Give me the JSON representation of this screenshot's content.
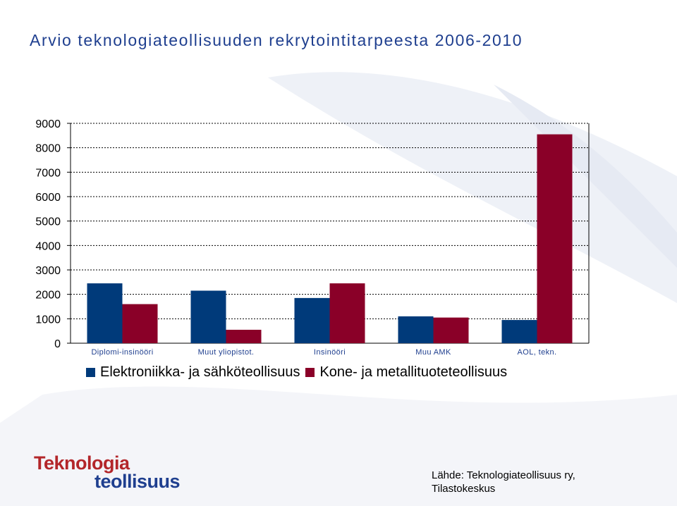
{
  "title": "Arvio teknologiateollisuuden rekrytointitarpeesta 2006-2010",
  "colors": {
    "series1": "#003a7a",
    "series2": "#8a0028",
    "title": "#1f3f8f",
    "logo_red": "#b3262a",
    "logo_blue": "#1f3f8f"
  },
  "chart_data": {
    "type": "bar",
    "title": "",
    "xlabel": "",
    "ylabel": "",
    "ylim": [
      0,
      9000
    ],
    "yticks": [
      "0",
      "1000",
      "2000",
      "3000",
      "4000",
      "5000",
      "6000",
      "7000",
      "8000",
      "9000"
    ],
    "grid": true,
    "legend_position": "bottom",
    "categories": [
      "Diplomi-insinööri",
      "Muut yliopistot.",
      "Insinööri",
      "Muu AMK",
      "AOL, tekn."
    ],
    "series": [
      {
        "name": "Elektroniikka- ja sähköteollisuus",
        "values": [
          2450,
          2150,
          1850,
          1100,
          950
        ]
      },
      {
        "name": "Kone- ja metallituoteteollisuus",
        "values": [
          1600,
          550,
          2450,
          1050,
          8550
        ]
      }
    ]
  },
  "logo": {
    "line1": "Teknologia",
    "line2": "teollisuus"
  },
  "source": {
    "line1": "Lähde: Teknologiateollisuus ry,",
    "line2": "Tilastokeskus"
  }
}
